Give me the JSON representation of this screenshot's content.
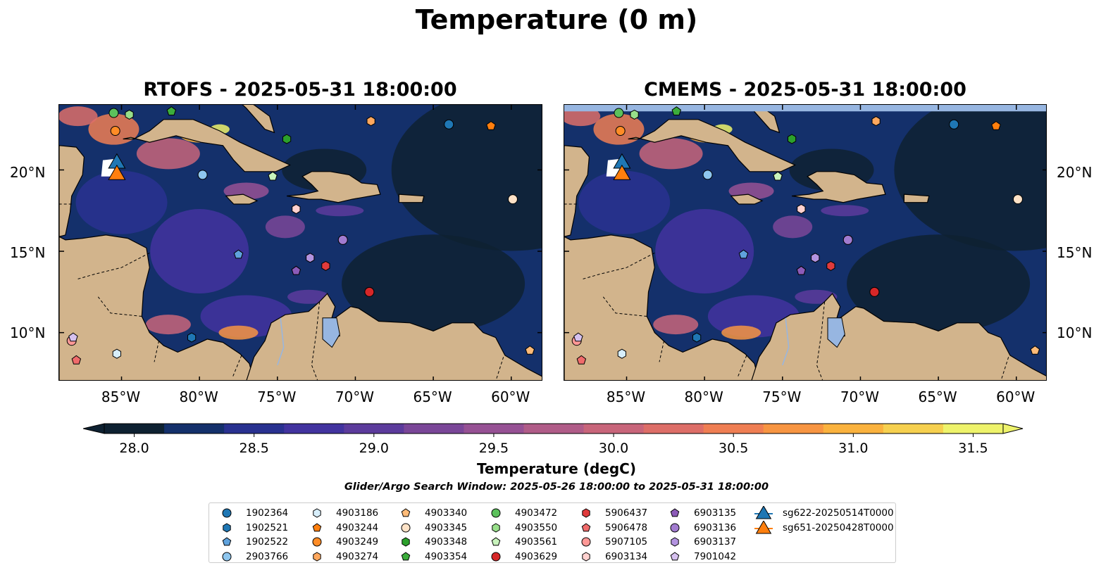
{
  "title": "Temperature (0 m)",
  "panels": [
    {
      "title": "RTOFS - 2025-05-31 18:00:00"
    },
    {
      "title": "CMEMS - 2025-05-31 18:00:00"
    }
  ],
  "map": {
    "lat_labels": [
      "20°N",
      "15°N",
      "10°N"
    ],
    "lon_labels": [
      "85°W",
      "80°W",
      "75°W",
      "70°W",
      "65°W",
      "60°W"
    ],
    "lon_range": [
      -89,
      -58
    ],
    "lat_range": [
      7,
      24
    ],
    "colors": {
      "land": "#d2b48c",
      "ocean_deep": "#0b2030",
      "lake": "#97b6e1"
    }
  },
  "colorbar": {
    "label": "Temperature (degC)",
    "min": 28.0,
    "max": 31.5,
    "ticks": [
      "28.0",
      "28.5",
      "29.0",
      "29.5",
      "30.0",
      "30.5",
      "31.0",
      "31.5"
    ],
    "colors": [
      "#0e2131",
      "#14306b",
      "#293190",
      "#42339f",
      "#5c3b9c",
      "#7a4698",
      "#965194",
      "#b05c88",
      "#c8657a",
      "#dd6e68",
      "#ef7e53",
      "#f79542",
      "#fab23e",
      "#f6d04f",
      "#eef36b"
    ]
  },
  "search_window": "Glider/Argo Search Window: 2025-05-26 18:00:00 to 2025-05-31 18:00:00",
  "legend": [
    {
      "label": "1902364",
      "marker": "circle",
      "color": "#1f77b4",
      "lon": -64,
      "lat": 22.8
    },
    {
      "label": "1902521",
      "marker": "hexagon",
      "color": "#1f77b4",
      "lon": -80.5,
      "lat": 9.7
    },
    {
      "label": "1902522",
      "marker": "pentagon",
      "color": "#5fa2dd",
      "lon": -77.5,
      "lat": 14.8
    },
    {
      "label": "2903766",
      "marker": "circle",
      "color": "#8ec6ee",
      "lon": -79.8,
      "lat": 19.7
    },
    {
      "label": "4903186",
      "marker": "hexagon",
      "color": "#d7eefb",
      "lon": -85.3,
      "lat": 8.7
    },
    {
      "label": "4903244",
      "marker": "pentagon",
      "color": "#ff7f0e",
      "lon": -61.3,
      "lat": 22.7
    },
    {
      "label": "4903249",
      "marker": "circle",
      "color": "#ff8c26",
      "lon": -85.4,
      "lat": 22.4
    },
    {
      "label": "4903274",
      "marker": "hexagon",
      "color": "#ffa85e",
      "lon": -69,
      "lat": 23
    },
    {
      "label": "4903340",
      "marker": "pentagon",
      "color": "#ffbb78",
      "lon": -58.8,
      "lat": 8.9
    },
    {
      "label": "4903345",
      "marker": "circle",
      "color": "#fde2c7",
      "lon": -59.9,
      "lat": 18.2
    },
    {
      "label": "4903348",
      "marker": "hexagon",
      "color": "#2ca02c",
      "lon": -74.4,
      "lat": 21.9
    },
    {
      "label": "4903354",
      "marker": "pentagon",
      "color": "#3cad3c",
      "lon": -81.8,
      "lat": 23.6
    },
    {
      "label": "4903472",
      "marker": "circle",
      "color": "#5cc15c",
      "lon": -85.5,
      "lat": 23.5
    },
    {
      "label": "4903550",
      "marker": "hexagon",
      "color": "#98df8a",
      "lon": -84.5,
      "lat": 23.4
    },
    {
      "label": "4903561",
      "marker": "pentagon",
      "color": "#c8f3bc",
      "lon": -75.3,
      "lat": 19.6
    },
    {
      "label": "4903629",
      "marker": "circle",
      "color": "#d62728",
      "lon": -69.1,
      "lat": 12.5
    },
    {
      "label": "5906437",
      "marker": "hexagon",
      "color": "#e03b3c",
      "lon": -71.9,
      "lat": 14.1
    },
    {
      "label": "5906478",
      "marker": "pentagon",
      "color": "#f06b6b",
      "lon": -87.9,
      "lat": 8.3
    },
    {
      "label": "5907105",
      "marker": "circle",
      "color": "#ff9896",
      "lon": -88.2,
      "lat": 9.5
    },
    {
      "label": "6903134",
      "marker": "hexagon",
      "color": "#ffd1cf",
      "lon": -73.8,
      "lat": 17.6
    },
    {
      "label": "6903135",
      "marker": "pentagon",
      "color": "#8c5bb8",
      "lon": -73.8,
      "lat": 13.8
    },
    {
      "label": "6903136",
      "marker": "circle",
      "color": "#a17bcf",
      "lon": -70.8,
      "lat": 15.7
    },
    {
      "label": "6903137",
      "marker": "hexagon",
      "color": "#b393e0",
      "lon": -72.9,
      "lat": 14.6
    },
    {
      "label": "7901042",
      "marker": "pentagon",
      "color": "#d6c1ef",
      "lon": -88.1,
      "lat": 9.7
    },
    {
      "label": "sg622-20250514T0000",
      "marker": "triangle",
      "color": "#1f77b4",
      "lon": -85.3,
      "lat": 20.4
    },
    {
      "label": "sg651-20250428T0000",
      "marker": "triangle",
      "color": "#ff7f0e",
      "lon": -85.3,
      "lat": 19.7
    }
  ]
}
